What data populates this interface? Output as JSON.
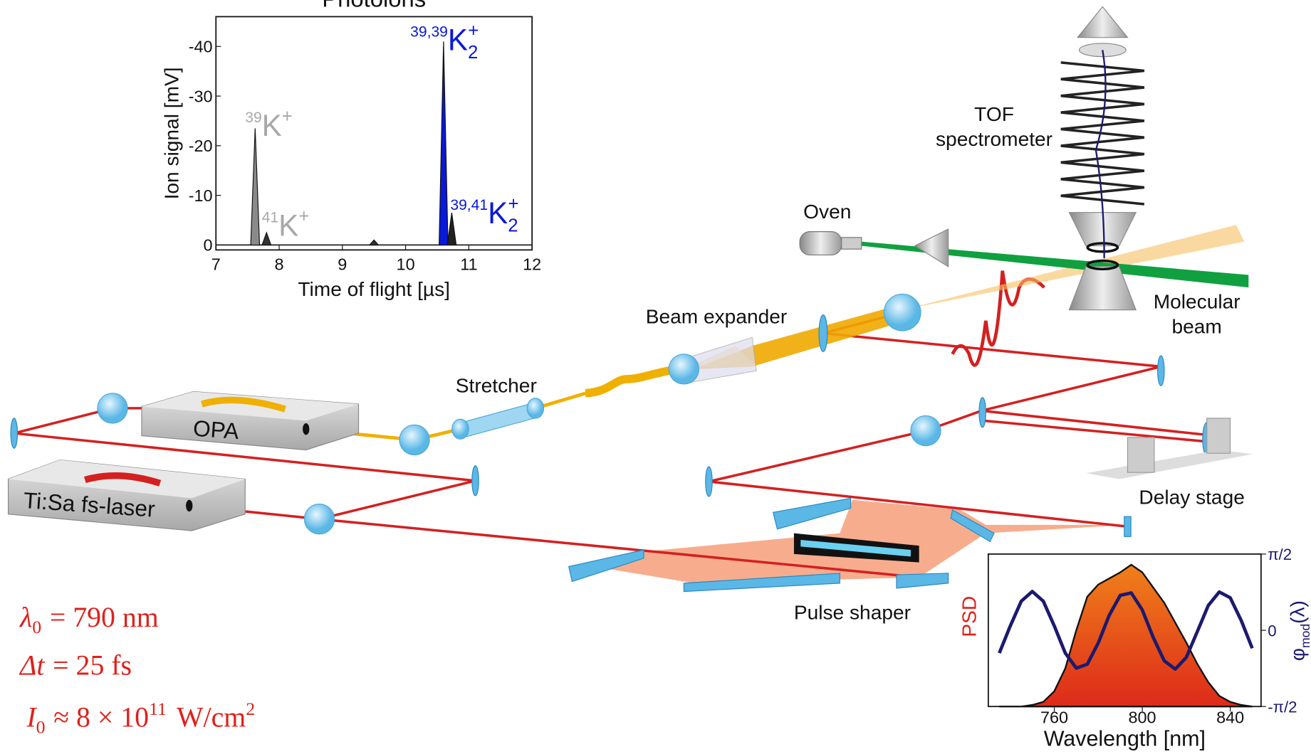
{
  "tof_inset": {
    "title": "Photoions",
    "xlabel": "Time of flight [µs]",
    "ylabel": "Ion signal [mV]",
    "xlim": [
      7,
      12
    ],
    "ylim": [
      1,
      -46
    ],
    "xticks": [
      7,
      8,
      9,
      10,
      11,
      12
    ],
    "yticks": [
      0,
      -10,
      -20,
      -30,
      -40
    ],
    "peaks": [
      {
        "x": 7.62,
        "value": -23.5,
        "color": "#8a8a8a"
      },
      {
        "x": 7.8,
        "value": -2.5,
        "color": "#333333"
      },
      {
        "x": 9.5,
        "value": -1,
        "color": "#333333"
      },
      {
        "x": 10.6,
        "value": -41,
        "color": "#0a18d8"
      },
      {
        "x": 10.73,
        "value": -6.5,
        "color": "#222222"
      }
    ],
    "labels": [
      {
        "mass": "39",
        "ion": "K",
        "sub": "",
        "charge": "+",
        "color": "#a8a8a8"
      },
      {
        "mass": "41",
        "ion": "K",
        "sub": "",
        "charge": "+",
        "color": "#a8a8a8"
      },
      {
        "mass": "39,39",
        "ion": "K",
        "sub": "2",
        "charge": "+",
        "color": "#0a18d8"
      },
      {
        "mass": "39,41",
        "ion": "K",
        "sub": "2",
        "charge": "+",
        "color": "#0a18d8"
      }
    ]
  },
  "psd_inset": {
    "xlabel": "Wavelength [nm]",
    "ylabel": "PSD",
    "y2label": "φ",
    "y2label_sub": "mod",
    "y2label_arg": "(λ)",
    "xlim": [
      730,
      854
    ],
    "xticks": [
      760,
      800,
      840
    ],
    "ylim": [
      0,
      1
    ],
    "y2lim": [
      -1.5708,
      1.5708
    ],
    "y2ticks": [
      {
        "value": 1.5708,
        "label": "π/2"
      },
      0,
      {
        "value": -1.5708,
        "label": "-π/2"
      }
    ],
    "x": [
      735,
      740,
      745,
      750,
      755,
      760,
      765,
      770,
      775,
      780,
      785,
      790,
      795,
      800,
      805,
      810,
      815,
      820,
      825,
      830,
      835,
      840,
      845,
      850
    ],
    "psd": [
      0,
      0,
      0,
      0.01,
      0.03,
      0.1,
      0.25,
      0.5,
      0.72,
      0.8,
      0.84,
      0.88,
      0.93,
      0.88,
      0.78,
      0.68,
      0.55,
      0.42,
      0.28,
      0.16,
      0.07,
      0.03,
      0.01,
      0
    ],
    "phase": [
      -0.47,
      0.09,
      0.6,
      0.8,
      0.6,
      0.09,
      -0.47,
      -0.78,
      -0.7,
      -0.26,
      0.31,
      0.72,
      0.77,
      0.42,
      -0.15,
      -0.63,
      -0.8,
      -0.56,
      -0.03,
      0.51,
      0.79,
      0.67,
      0.2,
      -0.37
    ],
    "psd_color": "#e0201a",
    "phase_color": "#1c1a6e"
  },
  "labels": {
    "tof": "TOF",
    "tof2": "spectrometer",
    "oven": "Oven",
    "molecular": "Molecular",
    "beam": "beam",
    "expander": "Beam expander",
    "stretcher": "Stretcher",
    "opa": "OPA",
    "laser": "Ti:Sa fs-laser",
    "delay": "Delay stage",
    "shaper": "Pulse shaper"
  },
  "equations": [
    {
      "lhs": "λ",
      "sub": "0",
      "rhs": "= 790 nm"
    },
    {
      "lhs": "Δt",
      "sub": "",
      "rhs": "= 25 fs"
    },
    {
      "lhs": "I",
      "sub": "0",
      "rhs": "≈ 8 × 10",
      "sup": "11",
      "unit": "W/cm",
      "unit_sup": "2"
    }
  ]
}
